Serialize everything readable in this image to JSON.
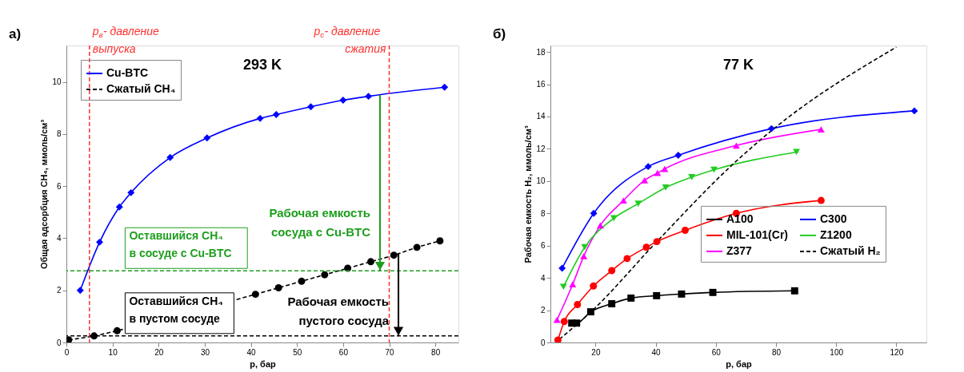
{
  "chart_data": [
    {
      "type": "line",
      "xlabel": "p, бар",
      "ylabel": "Общая адсорбция CH₄, ммоль/см³",
      "annotations": [
        "а)",
        "293 K",
        {
          "text": "Рабочая емкость\nсосуда с Cu-BTC",
          "x": 68,
          "y": 2.75
        },
        {
          "text": "Рабочая емкость\nпустого сосуда",
          "x": 72,
          "y": 0.25
        }
      ],
      "xlim": [
        0,
        85
      ],
      "xticks": [
        0,
        10,
        20,
        30,
        40,
        50,
        60,
        70,
        80
      ],
      "ylim": [
        0,
        11.4
      ],
      "yticks": [
        0,
        2,
        4,
        6,
        8,
        10
      ],
      "legend": "top left",
      "grid": false,
      "series": [
        {
          "name": "Cu-BTC",
          "color": "#0000ff",
          "marker": "diamond",
          "line_style": "solid",
          "x": [
            3,
            7.2,
            11.5,
            14,
            22.5,
            30.5,
            42,
            45.5,
            53,
            60,
            65.5,
            82
          ],
          "values": [
            2.0,
            3.85,
            5.2,
            5.75,
            7.1,
            7.85,
            8.6,
            8.75,
            9.05,
            9.3,
            9.45,
            9.8
          ]
        },
        {
          "name": "Сжатый CH₄",
          "color": "#000000",
          "marker": "circle",
          "line_style": "dashed",
          "x": [
            0.5,
            6,
            11,
            41,
            46,
            51,
            56,
            61,
            66,
            71,
            76,
            81
          ],
          "values": [
            0.1,
            0.25,
            0.45,
            1.85,
            2.1,
            2.35,
            2.6,
            2.85,
            3.1,
            3.35,
            3.65,
            3.9
          ]
        }
      ],
      "ref_lines": [
        {
          "axis": "x",
          "value": 5,
          "label": "p$_{в}$- давление\nвыпуска",
          "color": "#ff3030",
          "line_style": "dashed"
        },
        {
          "axis": "x",
          "value": 70,
          "label": "p$_{c}$- давление\nсжатия",
          "color": "#ff3030",
          "line_style": "dashed"
        },
        {
          "axis": "y",
          "value": 2.75,
          "label": "Оставшийся CH₄\nв сосуде с Cu-BTC",
          "color": "#1e9e1e",
          "line_style": "dashed"
        },
        {
          "axis": "y",
          "value": 0.25,
          "label": "Оставшийся CH₄\nв пустом сосуде",
          "color": "#000000",
          "line_style": "dashed"
        }
      ]
    },
    {
      "type": "line",
      "xlabel": "p, бар",
      "ylabel": "Рабочая емкость H₂, ммоль/см³",
      "annotations": [
        "б)",
        "77 K"
      ],
      "xlim": [
        5,
        130
      ],
      "xticks": [
        20,
        40,
        60,
        80,
        100,
        120
      ],
      "ylim": [
        0,
        18.4
      ],
      "yticks": [
        0,
        2,
        4,
        6,
        8,
        10,
        12,
        14,
        16,
        18
      ],
      "legend": "bottom right",
      "grid": false,
      "series": [
        {
          "name": "A100",
          "color": "#000000",
          "marker": "square",
          "line_style": "solid",
          "x": [
            12.1,
            13.7,
            18.4,
            25.4,
            31.8,
            40.3,
            48.6,
            59,
            86.2
          ],
          "values": [
            1.2,
            1.2,
            1.9,
            2.4,
            2.75,
            2.9,
            3.0,
            3.1,
            3.2
          ]
        },
        {
          "name": "MIL-101(Cr)",
          "color": "#ff0000",
          "marker": "circle",
          "line_style": "solid",
          "x": [
            7.5,
            9.6,
            14,
            19.3,
            25.4,
            30.5,
            36.9,
            40.4,
            49.8,
            66.8,
            95
          ],
          "values": [
            0.15,
            1.3,
            2.35,
            3.5,
            4.45,
            5.2,
            5.9,
            6.25,
            6.95,
            8.0,
            8.8
          ]
        },
        {
          "name": "Z377",
          "color": "#ff00ff",
          "marker": "triangle",
          "line_style": "solid",
          "x": [
            7.2,
            12.4,
            16.1,
            21.6,
            29.3,
            36.3,
            40.6,
            43,
            66.8,
            95
          ],
          "values": [
            1.4,
            3.6,
            5.35,
            7.25,
            8.8,
            10.05,
            10.5,
            10.75,
            12.2,
            13.2
          ]
        },
        {
          "name": "C300",
          "color": "#0000ff",
          "marker": "diamond",
          "line_style": "solid",
          "x": [
            8.9,
            19.4,
            37.5,
            47.5,
            78.5,
            126
          ],
          "values": [
            4.6,
            8.0,
            10.9,
            11.6,
            13.25,
            14.35
          ]
        },
        {
          "name": "Z1200",
          "color": "#22cc22",
          "marker": "triangle-down",
          "line_style": "solid",
          "x": [
            9.35,
            16.4,
            26.1,
            34.2,
            43.3,
            52,
            59.4,
            86.8
          ],
          "values": [
            3.45,
            5.9,
            7.7,
            8.6,
            9.6,
            10.25,
            10.7,
            11.8
          ]
        },
        {
          "name": "Сжатый H₂",
          "color": "#000000",
          "marker": "none",
          "line_style": "dashed",
          "x": [
            8,
            18.5,
            40.4,
            66,
            79,
            120
          ],
          "values": [
            0.2,
            1.9,
            6.25,
            11.1,
            13.2,
            18.3
          ]
        }
      ]
    }
  ]
}
